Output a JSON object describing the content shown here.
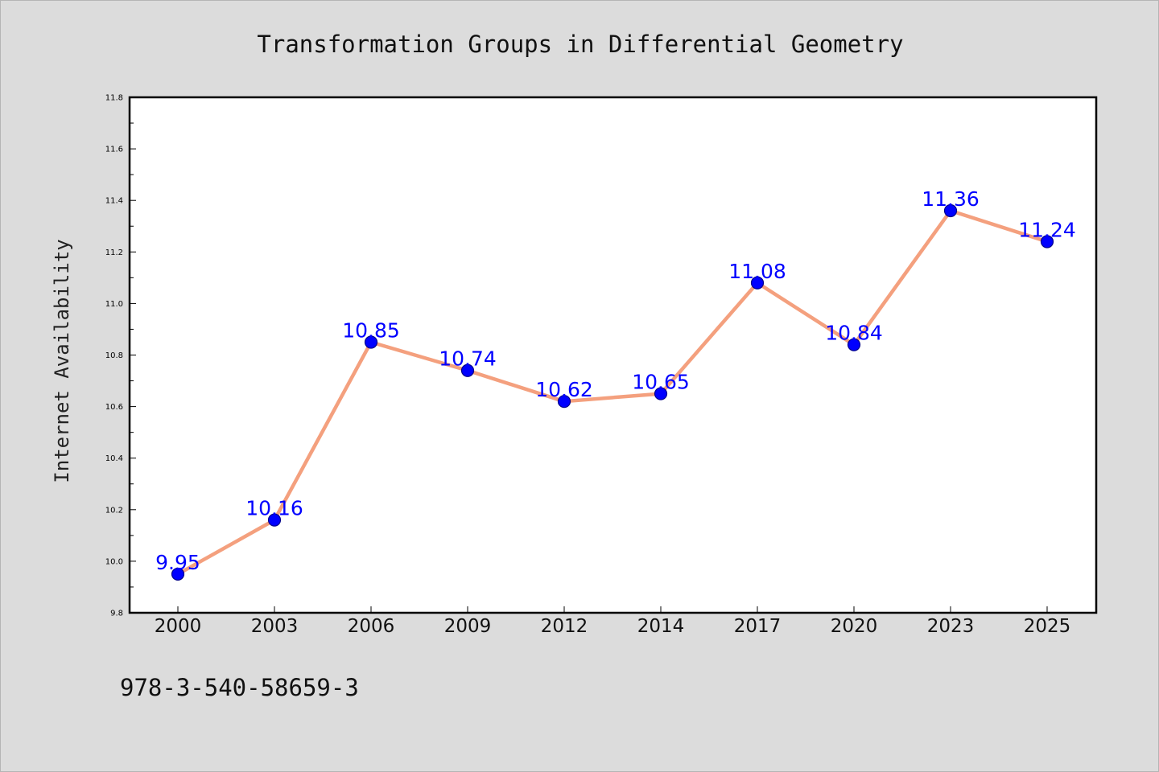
{
  "chart_data": {
    "type": "line",
    "title": "Transformation Groups in Differential Geometry",
    "xlabel": "",
    "ylabel": "Internet Availability",
    "categories": [
      "2000",
      "2003",
      "2006",
      "2009",
      "2012",
      "2014",
      "2017",
      "2020",
      "2023",
      "2025"
    ],
    "series": [
      {
        "values": [
          9.95,
          10.16,
          10.85,
          10.74,
          10.62,
          10.65,
          11.08,
          10.84,
          11.36,
          11.24
        ],
        "data_labels": [
          "9.95",
          "10.16",
          "10.85",
          "10.74",
          "10.62",
          "10.65",
          "11.08",
          "10.84",
          "11.36",
          "11.24"
        ]
      }
    ],
    "ylim": [
      9.8,
      11.8
    ],
    "yticks": [
      "9.8",
      "10.0",
      "10.2",
      "10.4",
      "10.6",
      "10.8",
      "11.0",
      "11.2",
      "11.4",
      "11.6",
      "11.8"
    ],
    "grid": false,
    "legend": "none",
    "footer_text": "978-3-540-58659-3",
    "colors": {
      "line": "#f4a07e",
      "marker": "#0000ff",
      "marker_edge": "#00008b",
      "data_label": "#0000ff",
      "figure_bg": "#dcdcdc",
      "plot_bg": "#ffffff"
    }
  }
}
